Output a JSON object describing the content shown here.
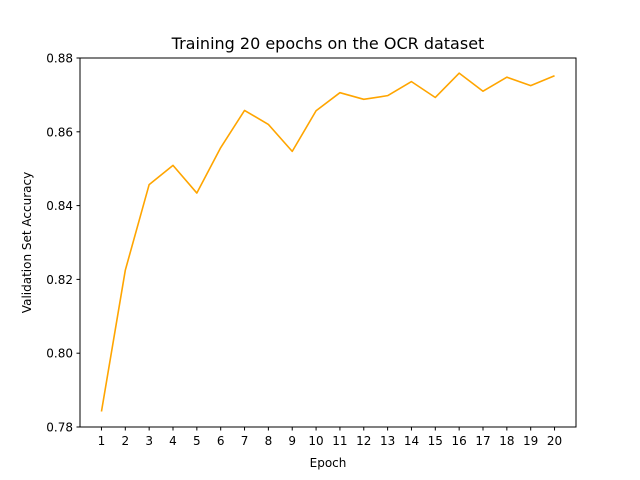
{
  "chart_data": {
    "type": "line",
    "title": "Training 20 epochs on the OCR dataset",
    "xlabel": "Epoch",
    "ylabel": "Validation Set Accuracy",
    "x": [
      1,
      2,
      3,
      4,
      5,
      6,
      7,
      8,
      9,
      10,
      11,
      12,
      13,
      14,
      15,
      16,
      17,
      18,
      19,
      20
    ],
    "series": [
      {
        "values": [
          0.7842,
          0.8225,
          0.8457,
          0.8509,
          0.8434,
          0.8557,
          0.8658,
          0.862,
          0.8547,
          0.8657,
          0.8706,
          0.8688,
          0.8698,
          0.8736,
          0.8693,
          0.8759,
          0.871,
          0.8748,
          0.8725,
          0.8752
        ],
        "color": "#ffa500"
      }
    ],
    "xlim": [
      0.1,
      20.9
    ],
    "ylim": [
      0.78,
      0.88
    ],
    "xticks": [
      "1",
      "2",
      "3",
      "4",
      "5",
      "6",
      "7",
      "8",
      "9",
      "10",
      "11",
      "12",
      "13",
      "14",
      "15",
      "16",
      "17",
      "18",
      "19",
      "20"
    ],
    "yticks": [
      "0.78",
      "0.80",
      "0.82",
      "0.84",
      "0.86",
      "0.88"
    ],
    "grid": false,
    "legend": "none"
  }
}
